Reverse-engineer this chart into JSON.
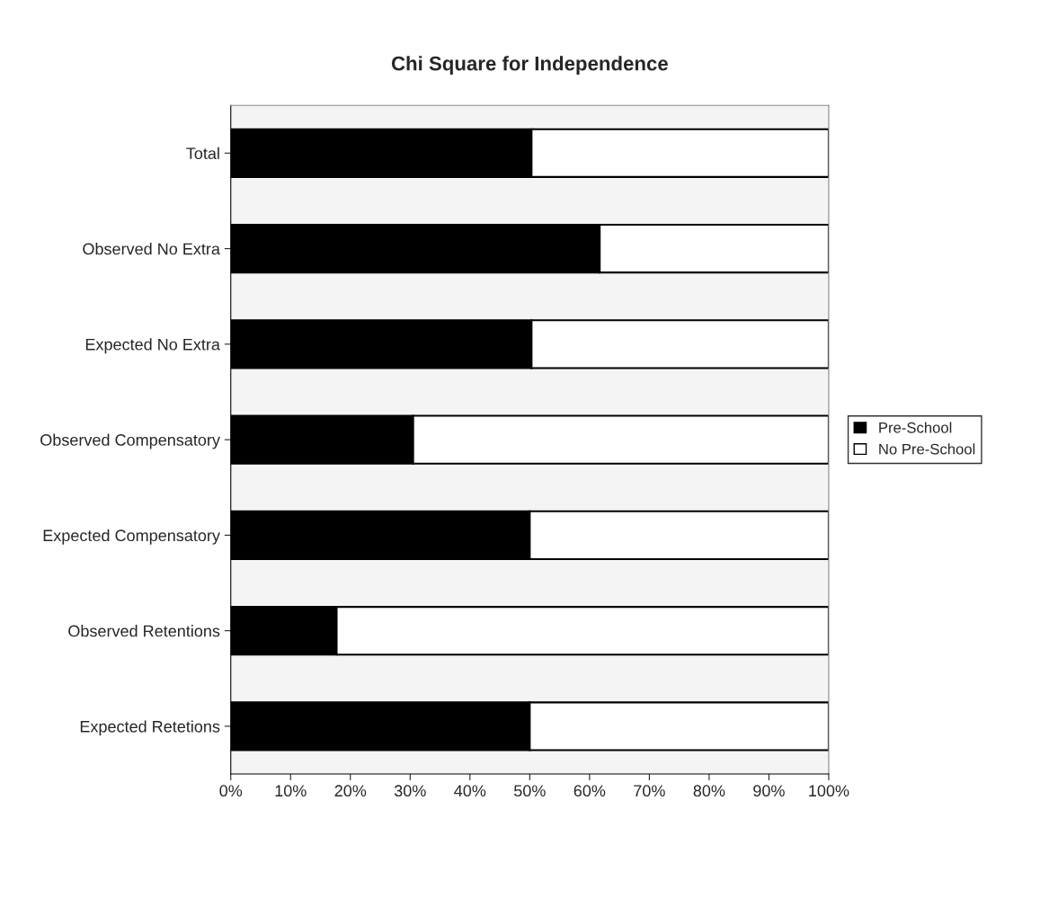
{
  "chart_data": {
    "type": "bar",
    "orientation": "horizontal",
    "stacked": true,
    "title": "Chi Square for Independence",
    "categories": [
      "Total",
      "Observed No Extra",
      "Expected No Extra",
      "Observed Compensatory",
      "Expected Compensatory",
      "Observed Retentions",
      "Expected Retetions"
    ],
    "series": [
      {
        "name": "Pre-School",
        "color": "#000000",
        "values": [
          50.3,
          61.7,
          50.3,
          30.5,
          50.0,
          17.7,
          50.0
        ]
      },
      {
        "name": "No Pre-School",
        "color": "#ffffff",
        "values": [
          49.7,
          38.3,
          49.7,
          69.5,
          50.0,
          82.3,
          50.0
        ]
      }
    ],
    "xlim": [
      0,
      100
    ],
    "xticks": [
      {
        "value": 0,
        "label": "0%"
      },
      {
        "value": 10,
        "label": "10%"
      },
      {
        "value": 20,
        "label": "20%"
      },
      {
        "value": 30,
        "label": "30%"
      },
      {
        "value": 40,
        "label": "40%"
      },
      {
        "value": 50,
        "label": "50%"
      },
      {
        "value": 60,
        "label": "60%"
      },
      {
        "value": 70,
        "label": "70%"
      },
      {
        "value": 80,
        "label": "80%"
      },
      {
        "value": 90,
        "label": "90%"
      },
      {
        "value": 100,
        "label": "100%"
      }
    ],
    "grid": false,
    "legend": "right"
  }
}
